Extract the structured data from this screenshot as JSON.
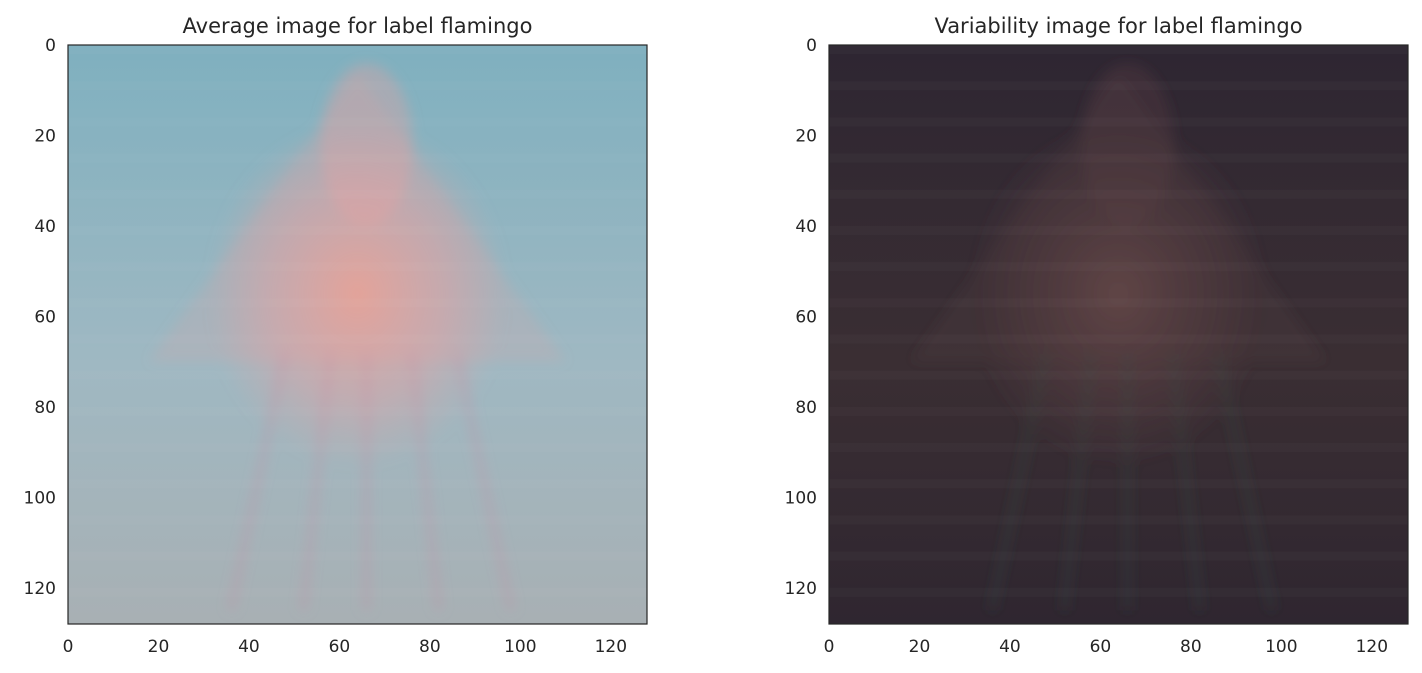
{
  "chart_data": [
    {
      "type": "image",
      "title": "Average image for label flamingo",
      "xlabel": "",
      "ylabel": "",
      "xlim": [
        0,
        128
      ],
      "ylim": [
        128,
        0
      ],
      "xticks": [
        0,
        20,
        40,
        60,
        80,
        100,
        120
      ],
      "yticks": [
        0,
        20,
        40,
        60,
        80,
        100,
        120
      ],
      "grid": false,
      "palette": {
        "base_top": "#7fb0bf",
        "base_mid": "#9fb8c2",
        "base_bottom": "#a8b0b4",
        "subject": "#e8a0a0",
        "subject_core": "#f0a090",
        "legs": "#c88aa0"
      }
    },
    {
      "type": "image",
      "title": "Variability image for label flamingo",
      "xlabel": "",
      "ylabel": "",
      "xlim": [
        0,
        128
      ],
      "ylim": [
        128,
        0
      ],
      "xticks": [
        0,
        20,
        40,
        60,
        80,
        100,
        120
      ],
      "yticks": [
        0,
        20,
        40,
        60,
        80,
        100,
        120
      ],
      "grid": false,
      "palette": {
        "base_top": "#2e2632",
        "base_mid": "#3a2e33",
        "base_bottom": "#2f2630",
        "subject": "#5a4044",
        "subject_core": "#6a4a4a",
        "legs": "#355045"
      }
    }
  ]
}
